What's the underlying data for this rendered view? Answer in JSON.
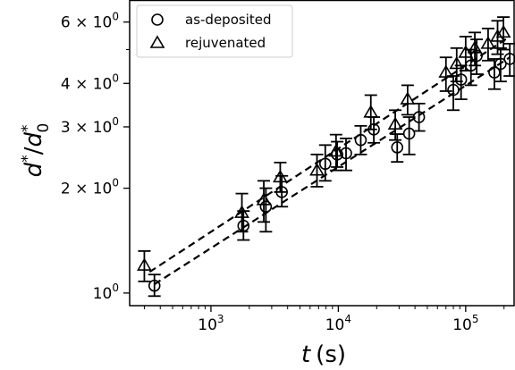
{
  "chart_data": {
    "type": "scatter",
    "x_scale": "log",
    "y_scale": "log",
    "xlabel": "t (s)",
    "xlabel_var": "t",
    "xlabel_unit": "(s)",
    "ylabel": "d*/d0*",
    "xlim": [
      230,
      240000
    ],
    "ylim": [
      0.92,
      6.9
    ],
    "x_ticks": [
      {
        "value": 1000,
        "base": "10",
        "exp": "3"
      },
      {
        "value": 10000,
        "base": "10",
        "exp": "4"
      },
      {
        "value": 100000,
        "base": "10",
        "exp": "5"
      }
    ],
    "y_ticks": [
      {
        "value": 1,
        "base": "10",
        "exp": "0",
        "mant": ""
      },
      {
        "value": 2,
        "base": "10",
        "exp": "0",
        "mant": "2 × "
      },
      {
        "value": 3,
        "base": "10",
        "exp": "0",
        "mant": "3 × "
      },
      {
        "value": 4,
        "base": "10",
        "exp": "0",
        "mant": "4 × "
      },
      {
        "value": 6,
        "base": "10",
        "exp": "0",
        "mant": "6 × "
      }
    ],
    "legend": {
      "position": "top-left"
    },
    "grid": false,
    "series": [
      {
        "name": "as-deposited",
        "marker": "circle",
        "color": "#000000",
        "points": [
          {
            "x": 360,
            "y": 1.05,
            "lo": 0.98,
            "hi": 1.13
          },
          {
            "x": 1800,
            "y": 1.56,
            "lo": 1.42,
            "hi": 1.72
          },
          {
            "x": 2700,
            "y": 1.77,
            "lo": 1.5,
            "hi": 2.0
          },
          {
            "x": 3600,
            "y": 1.95,
            "lo": 1.77,
            "hi": 2.17
          },
          {
            "x": 7900,
            "y": 2.35,
            "lo": 2.1,
            "hi": 2.66
          },
          {
            "x": 9800,
            "y": 2.5,
            "lo": 2.3,
            "hi": 2.72
          },
          {
            "x": 11500,
            "y": 2.52,
            "lo": 2.25,
            "hi": 2.78
          },
          {
            "x": 15000,
            "y": 2.75,
            "lo": 2.5,
            "hi": 3.02
          },
          {
            "x": 19000,
            "y": 2.95,
            "lo": 2.7,
            "hi": 3.2
          },
          {
            "x": 29000,
            "y": 2.62,
            "lo": 2.38,
            "hi": 2.86
          },
          {
            "x": 36000,
            "y": 2.87,
            "lo": 2.5,
            "hi": 3.2
          },
          {
            "x": 43000,
            "y": 3.2,
            "lo": 2.92,
            "hi": 3.5
          },
          {
            "x": 80000,
            "y": 3.83,
            "lo": 3.35,
            "hi": 4.2
          },
          {
            "x": 92000,
            "y": 4.1,
            "lo": 3.6,
            "hi": 4.5
          },
          {
            "x": 110000,
            "y": 4.5,
            "lo": 3.95,
            "hi": 5.0
          },
          {
            "x": 122000,
            "y": 4.8,
            "lo": 4.25,
            "hi": 5.35
          },
          {
            "x": 168000,
            "y": 4.3,
            "lo": 3.85,
            "hi": 4.7
          },
          {
            "x": 188000,
            "y": 4.55,
            "lo": 4.05,
            "hi": 5.05
          },
          {
            "x": 222000,
            "y": 4.7,
            "lo": 4.2,
            "hi": 5.2
          }
        ]
      },
      {
        "name": "rejuvenated",
        "marker": "triangle",
        "color": "#000000",
        "points": [
          {
            "x": 300,
            "y": 1.2,
            "lo": 1.08,
            "hi": 1.32
          },
          {
            "x": 1750,
            "y": 1.7,
            "lo": 1.5,
            "hi": 1.93
          },
          {
            "x": 2600,
            "y": 1.85,
            "lo": 1.6,
            "hi": 2.1
          },
          {
            "x": 3500,
            "y": 2.15,
            "lo": 1.95,
            "hi": 2.37
          },
          {
            "x": 6800,
            "y": 2.25,
            "lo": 2.02,
            "hi": 2.5
          },
          {
            "x": 9600,
            "y": 2.55,
            "lo": 2.25,
            "hi": 2.85
          },
          {
            "x": 18000,
            "y": 3.3,
            "lo": 2.95,
            "hi": 3.7
          },
          {
            "x": 28000,
            "y": 3.05,
            "lo": 2.75,
            "hi": 3.35
          },
          {
            "x": 35000,
            "y": 3.6,
            "lo": 3.25,
            "hi": 3.95
          },
          {
            "x": 70000,
            "y": 4.3,
            "lo": 3.8,
            "hi": 4.75
          },
          {
            "x": 85000,
            "y": 4.55,
            "lo": 4.05,
            "hi": 5.05
          },
          {
            "x": 100000,
            "y": 4.9,
            "lo": 4.35,
            "hi": 5.45
          },
          {
            "x": 118000,
            "y": 5.05,
            "lo": 4.5,
            "hi": 5.6
          },
          {
            "x": 150000,
            "y": 5.2,
            "lo": 4.65,
            "hi": 5.75
          },
          {
            "x": 178000,
            "y": 5.45,
            "lo": 4.85,
            "hi": 6.05
          },
          {
            "x": 198000,
            "y": 5.6,
            "lo": 5.0,
            "hi": 6.2
          }
        ]
      }
    ],
    "fit_lines": [
      {
        "series": "as-deposited",
        "style": "dashed",
        "from": {
          "x": 360,
          "y": 1.06
        },
        "to": {
          "x": 222000,
          "y": 4.75
        }
      },
      {
        "series": "rejuvenated",
        "style": "dashed",
        "from": {
          "x": 330,
          "y": 1.15
        },
        "to": {
          "x": 222000,
          "y": 5.45
        }
      }
    ]
  }
}
